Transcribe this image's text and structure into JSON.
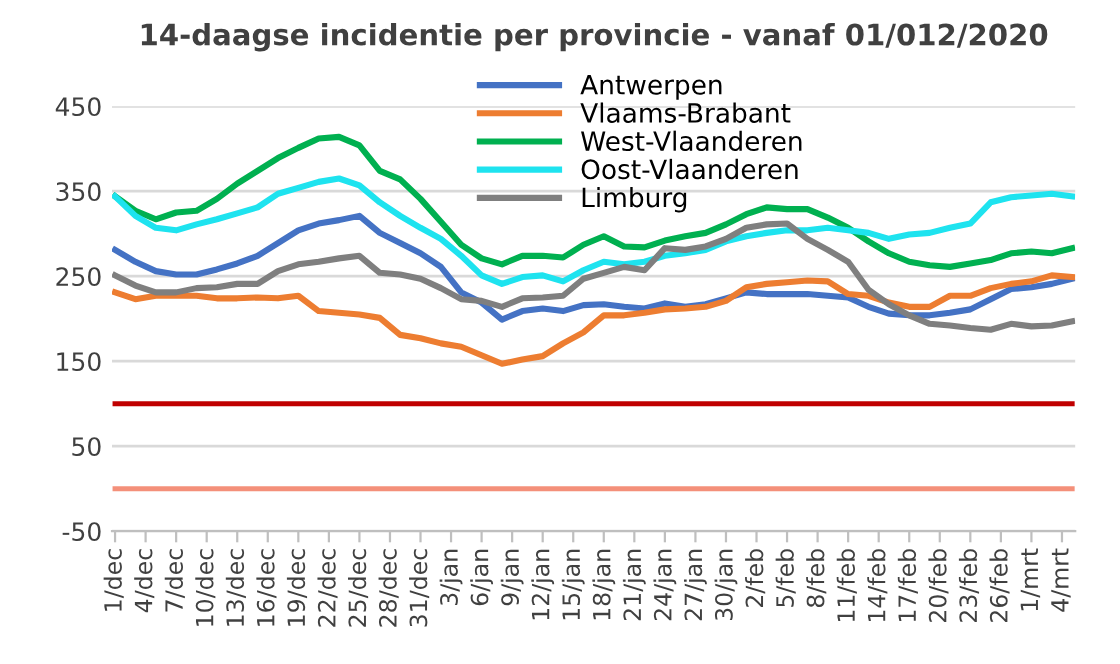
{
  "chart_data": {
    "type": "line",
    "title": "14-daagse incidentie per provincie - vanaf 01/012/2020",
    "x": [
      "2020-12-01",
      "2020-12-03",
      "2020-12-05",
      "2020-12-07",
      "2020-12-09",
      "2020-12-11",
      "2020-12-13",
      "2020-12-15",
      "2020-12-17",
      "2020-12-19",
      "2020-12-21",
      "2020-12-23",
      "2020-12-25",
      "2020-12-27",
      "2020-12-29",
      "2020-12-31",
      "2021-01-02",
      "2021-01-04",
      "2021-01-06",
      "2021-01-08",
      "2021-01-10",
      "2021-01-12",
      "2021-01-14",
      "2021-01-16",
      "2021-01-18",
      "2021-01-20",
      "2021-01-22",
      "2021-01-24",
      "2021-01-26",
      "2021-01-28",
      "2021-01-30",
      "2021-02-01",
      "2021-02-03",
      "2021-02-05",
      "2021-02-07",
      "2021-02-09",
      "2021-02-11",
      "2021-02-13",
      "2021-02-15",
      "2021-02-17",
      "2021-02-19",
      "2021-02-21",
      "2021-02-23",
      "2021-02-25",
      "2021-02-27",
      "2021-03-01",
      "2021-03-03",
      "2021-03-05"
    ],
    "series": [
      {
        "name": "Antwerpen",
        "color": "#4472c4",
        "values": [
          281,
          267,
          256,
          252,
          252,
          258,
          265,
          274,
          289,
          304,
          312,
          316,
          321,
          301,
          289,
          277,
          261,
          231,
          219,
          199,
          209,
          212,
          209,
          216,
          217,
          214,
          212,
          218,
          214,
          217,
          224,
          231,
          229,
          229,
          229,
          227,
          225,
          214,
          206,
          204,
          204,
          207,
          211,
          223,
          235,
          237,
          241,
          247
        ]
      },
      {
        "name": "Vlaams-Brabant",
        "color": "#ed7d31",
        "values": [
          231,
          223,
          227,
          227,
          227,
          224,
          224,
          225,
          224,
          227,
          209,
          207,
          205,
          201,
          181,
          177,
          171,
          167,
          157,
          147,
          152,
          156,
          171,
          184,
          204,
          204,
          207,
          211,
          212,
          214,
          221,
          237,
          241,
          243,
          245,
          244,
          229,
          227,
          219,
          214,
          214,
          227,
          227,
          236,
          241,
          244,
          251,
          249
        ]
      },
      {
        "name": "West-Vlaanderen",
        "color": "#00b050",
        "values": [
          344,
          327,
          317,
          325,
          327,
          341,
          359,
          374,
          389,
          401,
          412,
          414,
          404,
          374,
          364,
          341,
          314,
          287,
          271,
          264,
          274,
          274,
          272,
          287,
          297,
          285,
          284,
          292,
          297,
          301,
          311,
          323,
          331,
          329,
          329,
          319,
          307,
          291,
          277,
          267,
          263,
          261,
          265,
          269,
          277,
          279,
          277,
          283
        ]
      },
      {
        "name": "Oost-Vlaanderen",
        "color": "#1ee3ef",
        "values": [
          344,
          321,
          307,
          304,
          311,
          317,
          324,
          331,
          347,
          354,
          361,
          365,
          357,
          337,
          321,
          307,
          294,
          274,
          251,
          241,
          249,
          251,
          244,
          257,
          267,
          264,
          267,
          274,
          277,
          281,
          291,
          297,
          301,
          304,
          304,
          307,
          304,
          301,
          294,
          299,
          301,
          307,
          312,
          337,
          343,
          345,
          347,
          344
        ]
      },
      {
        "name": "Limburg",
        "color": "#7f7f7f",
        "values": [
          251,
          239,
          231,
          231,
          236,
          237,
          241,
          241,
          256,
          264,
          267,
          271,
          274,
          254,
          252,
          247,
          236,
          223,
          221,
          214,
          224,
          225,
          227,
          247,
          254,
          261,
          257,
          283,
          281,
          285,
          294,
          307,
          311,
          312,
          294,
          281,
          267,
          234,
          217,
          204,
          194,
          192,
          189,
          187,
          194,
          191,
          192,
          197
        ]
      }
    ],
    "xlim": [
      "2020-12-01",
      "2021-03-05"
    ],
    "xticks": [
      {
        "value": "2020-12-01",
        "label": "1/dec"
      },
      {
        "value": "2020-12-04",
        "label": "4/dec"
      },
      {
        "value": "2020-12-07",
        "label": "7/dec"
      },
      {
        "value": "2020-12-10",
        "label": "10/dec"
      },
      {
        "value": "2020-12-13",
        "label": "13/dec"
      },
      {
        "value": "2020-12-16",
        "label": "16/dec"
      },
      {
        "value": "2020-12-19",
        "label": "19/dec"
      },
      {
        "value": "2020-12-22",
        "label": "22/dec"
      },
      {
        "value": "2020-12-25",
        "label": "25/dec"
      },
      {
        "value": "2020-12-28",
        "label": "28/dec"
      },
      {
        "value": "2020-12-31",
        "label": "31/dec"
      },
      {
        "value": "2021-01-03",
        "label": "3/jan"
      },
      {
        "value": "2021-01-06",
        "label": "6/jan"
      },
      {
        "value": "2021-01-09",
        "label": "9/jan"
      },
      {
        "value": "2021-01-12",
        "label": "12/jan"
      },
      {
        "value": "2021-01-15",
        "label": "15/jan"
      },
      {
        "value": "2021-01-18",
        "label": "18/jan"
      },
      {
        "value": "2021-01-21",
        "label": "21/jan"
      },
      {
        "value": "2021-01-24",
        "label": "24/jan"
      },
      {
        "value": "2021-01-27",
        "label": "27/jan"
      },
      {
        "value": "2021-01-30",
        "label": "30/jan"
      },
      {
        "value": "2021-02-02",
        "label": "2/feb"
      },
      {
        "value": "2021-02-05",
        "label": "5/feb"
      },
      {
        "value": "2021-02-08",
        "label": "8/feb"
      },
      {
        "value": "2021-02-11",
        "label": "11/feb"
      },
      {
        "value": "2021-02-14",
        "label": "14/feb"
      },
      {
        "value": "2021-02-17",
        "label": "17/feb"
      },
      {
        "value": "2021-02-20",
        "label": "20/feb"
      },
      {
        "value": "2021-02-23",
        "label": "23/feb"
      },
      {
        "value": "2021-02-26",
        "label": "26/feb"
      },
      {
        "value": "2021-03-01",
        "label": "1/mrt"
      },
      {
        "value": "2021-03-04",
        "label": "4/mrt"
      }
    ],
    "ylim": [
      -50,
      450
    ],
    "yticks": [
      -50,
      50,
      150,
      250,
      350,
      450
    ],
    "ref_lines": [
      {
        "axis": "y",
        "value": 100,
        "color": "#c00000"
      },
      {
        "axis": "y",
        "value": 0,
        "color": "#f4907a"
      }
    ],
    "grid": "y",
    "legend": "top",
    "marker": "none",
    "line_style": "solid"
  }
}
